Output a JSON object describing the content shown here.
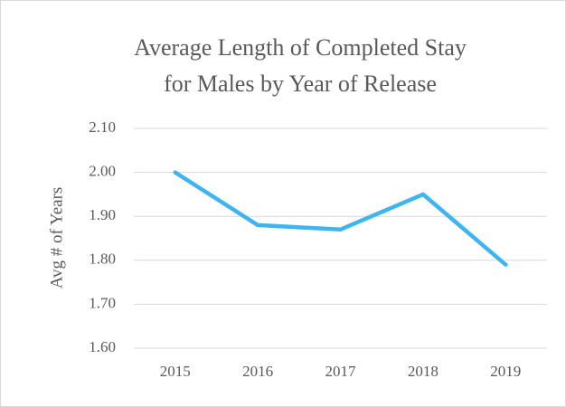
{
  "chart_data": {
    "type": "line",
    "title": [
      "Average Length of Completed Stay",
      "for Males by Year of Release"
    ],
    "y_label": "Avg # of Years",
    "categories": [
      "2015",
      "2016",
      "2017",
      "2018",
      "2019"
    ],
    "values": [
      2.0,
      1.88,
      1.87,
      1.95,
      1.79
    ],
    "color": "#3fb5f0",
    "ylim": [
      1.6,
      2.1
    ],
    "yticks": [
      {
        "value": 1.6,
        "label": "1.60"
      },
      {
        "value": 1.7,
        "label": "1.70"
      },
      {
        "value": 1.8,
        "label": "1.80"
      },
      {
        "value": 1.9,
        "label": "1.90"
      },
      {
        "value": 2.0,
        "label": "2.00"
      },
      {
        "value": 2.1,
        "label": "2.10"
      }
    ],
    "grid": true
  }
}
